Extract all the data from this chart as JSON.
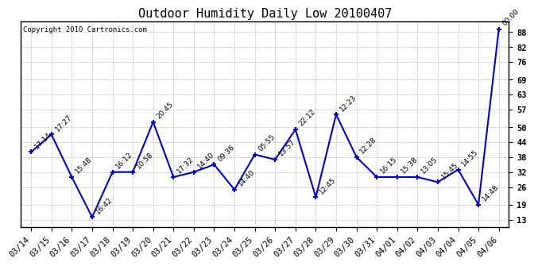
{
  "title": "Outdoor Humidity Daily Low 20100407",
  "copyright": "Copyright 2010 Cartronics.com",
  "x_labels": [
    "03/14",
    "03/15",
    "03/16",
    "03/17",
    "03/18",
    "03/19",
    "03/20",
    "03/21",
    "03/22",
    "03/23",
    "03/24",
    "03/25",
    "03/26",
    "03/27",
    "03/28",
    "03/29",
    "03/30",
    "03/31",
    "04/01",
    "04/02",
    "04/03",
    "04/04",
    "04/05",
    "04/06"
  ],
  "y_values": [
    40,
    47,
    30,
    14,
    32,
    32,
    52,
    30,
    32,
    35,
    25,
    39,
    37,
    49,
    22,
    55,
    38,
    30,
    30,
    30,
    28,
    33,
    19,
    89
  ],
  "point_labels": [
    "17:14",
    "17:27",
    "15:48",
    "16:42",
    "16:12",
    "10:58",
    "20:45",
    "17:32",
    "14:40",
    "09:36",
    "14:40",
    "05:55",
    "13:57",
    "22:12",
    "12:45",
    "12:23",
    "12:28",
    "16:15",
    "15:38",
    "13:05",
    "15:45",
    "14:55",
    "14:48",
    "00:00"
  ],
  "y_ticks": [
    13,
    19,
    26,
    32,
    38,
    44,
    50,
    57,
    63,
    69,
    76,
    82,
    88
  ],
  "ylim": [
    10,
    92
  ],
  "line_color": "#0000CC",
  "marker_color": "#0000CC",
  "bg_color": "#ffffff",
  "grid_color": "#bbbbbb",
  "title_fontsize": 11,
  "label_fontsize": 6.5,
  "tick_fontsize": 7.5,
  "copyright_fontsize": 6.5
}
